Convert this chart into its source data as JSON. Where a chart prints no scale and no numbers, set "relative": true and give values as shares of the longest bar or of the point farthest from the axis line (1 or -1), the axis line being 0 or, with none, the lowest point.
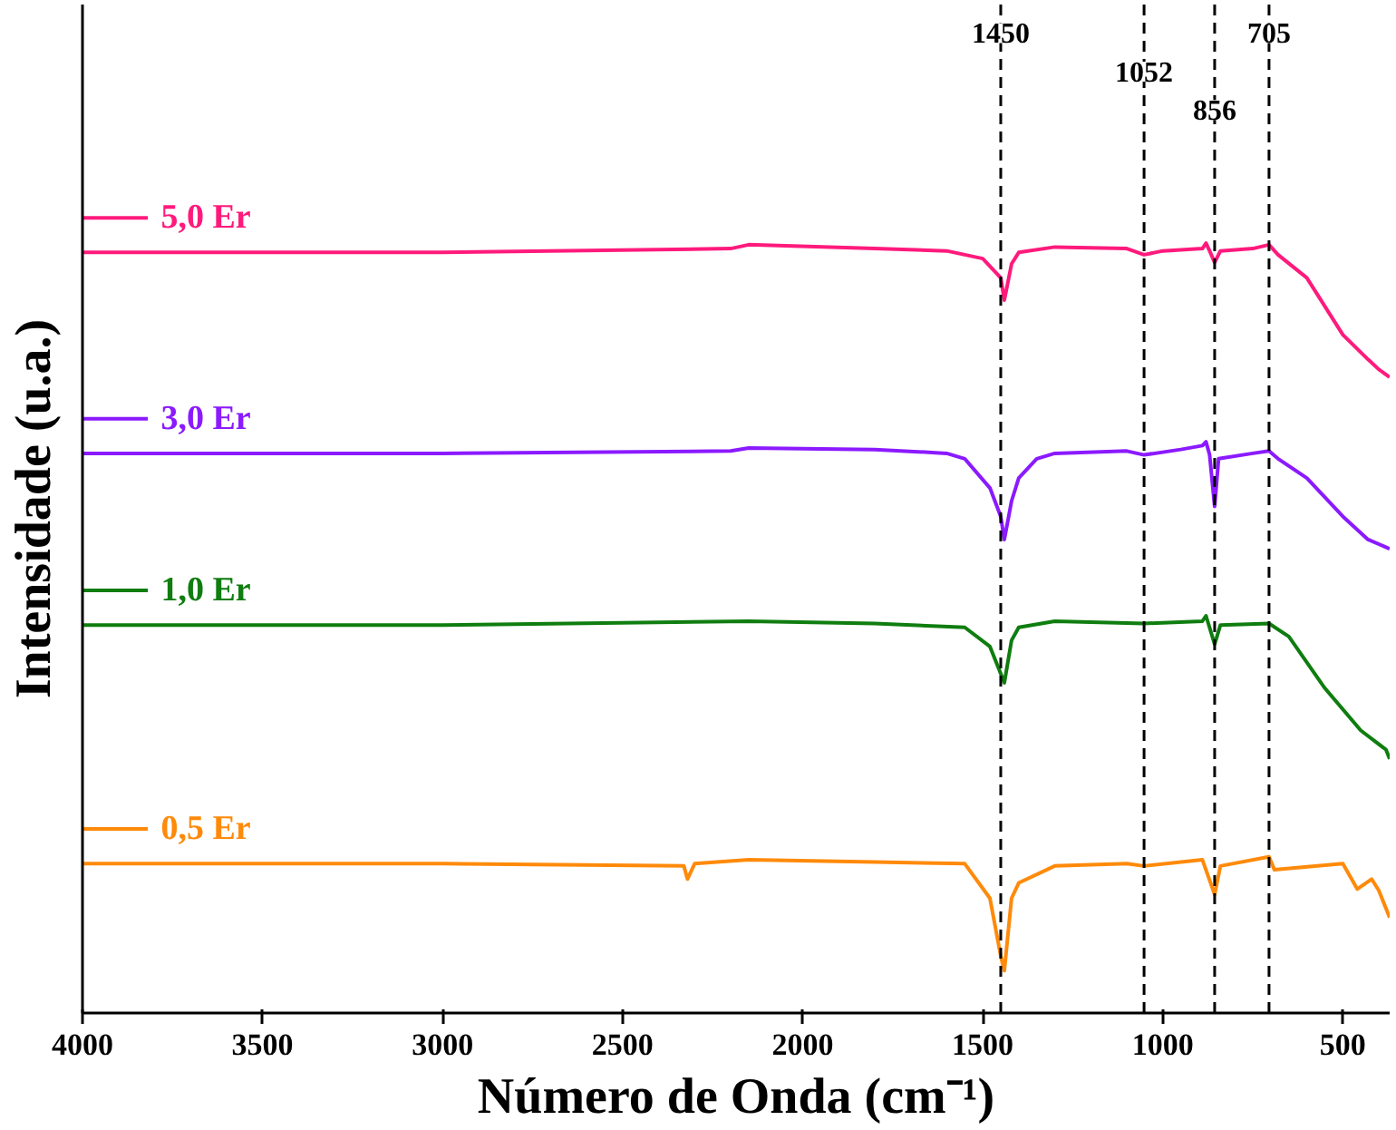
{
  "chart_data": {
    "type": "line",
    "relative": true,
    "xlabel": "Número de Onda (cm⁻¹)",
    "ylabel": "Intensidade (u.a.)",
    "xlim": [
      4000,
      370
    ],
    "xticks": [
      4000,
      3500,
      3000,
      2500,
      2000,
      1500,
      1000,
      500
    ],
    "grid": false,
    "legend": "left",
    "line_style": "solid",
    "marker": "none",
    "x": [
      4000,
      3000,
      2200,
      2150,
      1800,
      1600,
      1500,
      1450,
      1440,
      1420,
      1400,
      1300,
      1100,
      1052,
      1000,
      890,
      880,
      870,
      856,
      840,
      750,
      705,
      680,
      600,
      500,
      430,
      400,
      370
    ],
    "series": [
      {
        "name": "5,0 Er",
        "color": "#ff1a7c",
        "values": [
          0.988,
          0.988,
          0.993,
          0.998,
          0.993,
          0.99,
          0.98,
          0.955,
          0.926,
          0.973,
          0.988,
          0.995,
          0.993,
          0.985,
          0.99,
          0.993,
          1.0,
          0.99,
          0.975,
          0.99,
          0.993,
          0.998,
          0.985,
          0.955,
          0.881,
          0.849,
          0.836,
          0.826
        ]
      },
      {
        "name": "3,0 Er",
        "color": "#8b1aff",
        "x": [
          4000,
          3000,
          2200,
          2150,
          1800,
          1600,
          1550,
          1480,
          1450,
          1440,
          1420,
          1400,
          1350,
          1300,
          1100,
          1052,
          950,
          890,
          880,
          870,
          856,
          845,
          750,
          705,
          680,
          600,
          500,
          430,
          370
        ],
        "values": [
          0.727,
          0.727,
          0.73,
          0.734,
          0.732,
          0.727,
          0.72,
          0.682,
          0.645,
          0.615,
          0.665,
          0.695,
          0.72,
          0.727,
          0.73,
          0.725,
          0.732,
          0.737,
          0.742,
          0.725,
          0.658,
          0.72,
          0.727,
          0.73,
          0.72,
          0.695,
          0.645,
          0.615,
          0.603
        ]
      },
      {
        "name": "1,0 Er",
        "color": "#0f7d0f",
        "x": [
          4000,
          3000,
          2150,
          1800,
          1550,
          1480,
          1440,
          1420,
          1400,
          1300,
          1052,
          890,
          880,
          856,
          840,
          705,
          650,
          550,
          450,
          380,
          370
        ],
        "values": [
          0.504,
          0.504,
          0.509,
          0.506,
          0.501,
          0.476,
          0.429,
          0.484,
          0.501,
          0.509,
          0.506,
          0.509,
          0.516,
          0.479,
          0.504,
          0.506,
          0.489,
          0.422,
          0.367,
          0.342,
          0.33
        ]
      },
      {
        "name": "0,5 Er",
        "color": "#ff8a0a",
        "x": [
          4000,
          3000,
          2330,
          2320,
          2300,
          2150,
          1800,
          1550,
          1480,
          1450,
          1440,
          1420,
          1400,
          1300,
          1100,
          1052,
          890,
          856,
          840,
          705,
          690,
          500,
          460,
          420,
          400,
          370
        ],
        "values": [
          0.194,
          0.194,
          0.191,
          0.174,
          0.194,
          0.199,
          0.196,
          0.194,
          0.149,
          0.074,
          0.055,
          0.149,
          0.169,
          0.191,
          0.194,
          0.191,
          0.199,
          0.154,
          0.191,
          0.203,
          0.186,
          0.194,
          0.161,
          0.174,
          0.159,
          0.124
        ]
      }
    ],
    "ref_lines": [
      {
        "axis": "x",
        "value": 1450,
        "label": "1450",
        "color": "#000000",
        "line_style": "dashed"
      },
      {
        "axis": "x",
        "value": 1052,
        "label": "1052",
        "color": "#000000",
        "line_style": "dashed"
      },
      {
        "axis": "x",
        "value": 856,
        "label": "856",
        "color": "#000000",
        "line_style": "dashed"
      },
      {
        "axis": "x",
        "value": 705,
        "label": "705",
        "color": "#000000",
        "line_style": "dashed"
      }
    ]
  }
}
